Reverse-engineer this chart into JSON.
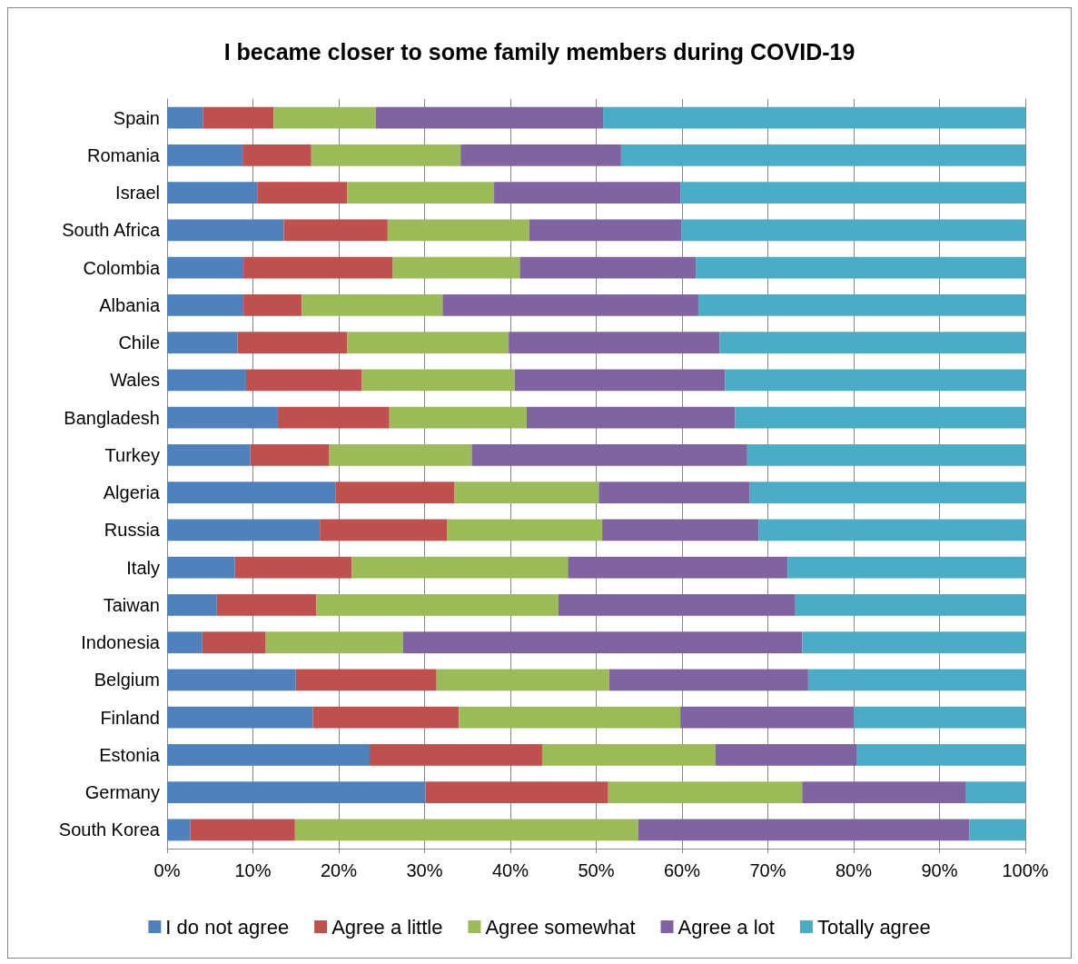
{
  "chart_data": {
    "type": "bar",
    "orientation": "horizontal",
    "stacked": true,
    "title": "I became closer to some family members during COVID-19",
    "categories": [
      "Spain",
      "Romania",
      "Israel",
      "South Africa",
      "Colombia",
      "Albania",
      "Chile",
      "Wales",
      "Bangladesh",
      "Turkey",
      "Algeria",
      "Russia",
      "Italy",
      "Taiwan",
      "Indonesia",
      "Belgium",
      "Finland",
      "Estonia",
      "Germany",
      "South Korea"
    ],
    "series": [
      {
        "name": "I do not agree",
        "color": "#4f81bd",
        "values": [
          4.2,
          8.8,
          10.5,
          13.6,
          8.9,
          8.9,
          8.2,
          9.2,
          12.9,
          9.7,
          19.6,
          17.8,
          7.9,
          5.8,
          4.1,
          15.0,
          17.0,
          23.6,
          30.1,
          2.7
        ]
      },
      {
        "name": "Agree a little",
        "color": "#c0504d",
        "values": [
          8.2,
          8.0,
          10.5,
          12.1,
          17.4,
          6.8,
          12.8,
          13.5,
          13.0,
          9.2,
          13.9,
          14.8,
          13.6,
          11.6,
          7.4,
          16.4,
          17.0,
          20.1,
          21.3,
          12.2
        ]
      },
      {
        "name": "Agree somewhat",
        "color": "#9bbb59",
        "values": [
          11.9,
          17.4,
          17.1,
          16.5,
          14.8,
          16.4,
          18.8,
          17.8,
          16.0,
          16.6,
          16.8,
          18.1,
          25.2,
          28.2,
          16.0,
          20.1,
          25.8,
          20.2,
          22.6,
          40.0
        ]
      },
      {
        "name": "Agree a lot",
        "color": "#8064a2",
        "values": [
          26.5,
          18.7,
          21.7,
          17.7,
          20.5,
          29.8,
          24.6,
          24.5,
          24.3,
          32.1,
          17.6,
          18.2,
          25.6,
          27.6,
          46.5,
          23.2,
          20.2,
          16.5,
          19.1,
          38.6
        ]
      },
      {
        "name": "Totally agree",
        "color": "#4bacc6",
        "values": [
          49.2,
          47.1,
          40.2,
          40.1,
          38.4,
          38.1,
          35.6,
          35.0,
          33.8,
          32.4,
          32.1,
          31.1,
          27.7,
          26.8,
          26.0,
          25.3,
          20.0,
          19.6,
          6.9,
          6.5
        ]
      }
    ],
    "xlim": [
      0,
      100
    ],
    "xticks": [
      {
        "value": 0,
        "label": "0%"
      },
      {
        "value": 10,
        "label": "10%"
      },
      {
        "value": 20,
        "label": "20%"
      },
      {
        "value": 30,
        "label": "30%"
      },
      {
        "value": 40,
        "label": "40%"
      },
      {
        "value": 50,
        "label": "50%"
      },
      {
        "value": 60,
        "label": "60%"
      },
      {
        "value": 70,
        "label": "70%"
      },
      {
        "value": 80,
        "label": "80%"
      },
      {
        "value": 90,
        "label": "90%"
      },
      {
        "value": 100,
        "label": "100%"
      }
    ],
    "grid": "x",
    "legend": "bottom"
  }
}
